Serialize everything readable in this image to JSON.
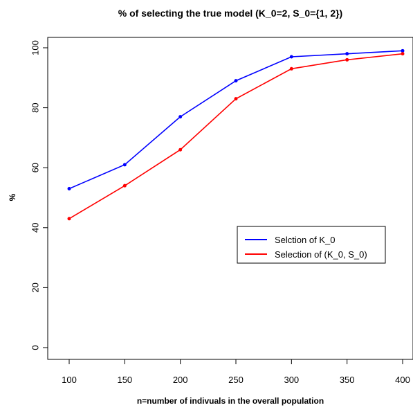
{
  "chart_data": {
    "type": "line",
    "title": "% of selecting the true model (K_0=2, S_0={1, 2})",
    "xlabel": "n=number of indivuals in the overall population",
    "ylabel": "%",
    "x": [
      100,
      150,
      200,
      250,
      300,
      350,
      400
    ],
    "xticks": [
      "100",
      "150",
      "200",
      "250",
      "300",
      "350",
      "400"
    ],
    "yticks": [
      "0",
      "20",
      "40",
      "60",
      "80",
      "100"
    ],
    "xlim": [
      100,
      400
    ],
    "ylim": [
      0,
      100
    ],
    "grid": false,
    "legend_position": "center-right",
    "series": [
      {
        "name": "Selction of K_0",
        "color": "#0000ff",
        "values": [
          53,
          61,
          77,
          89,
          97,
          98,
          99
        ]
      },
      {
        "name": "Selection of (K_0, S_0)",
        "color": "#ff0000",
        "values": [
          43,
          54,
          66,
          83,
          93,
          96,
          98
        ]
      }
    ]
  }
}
